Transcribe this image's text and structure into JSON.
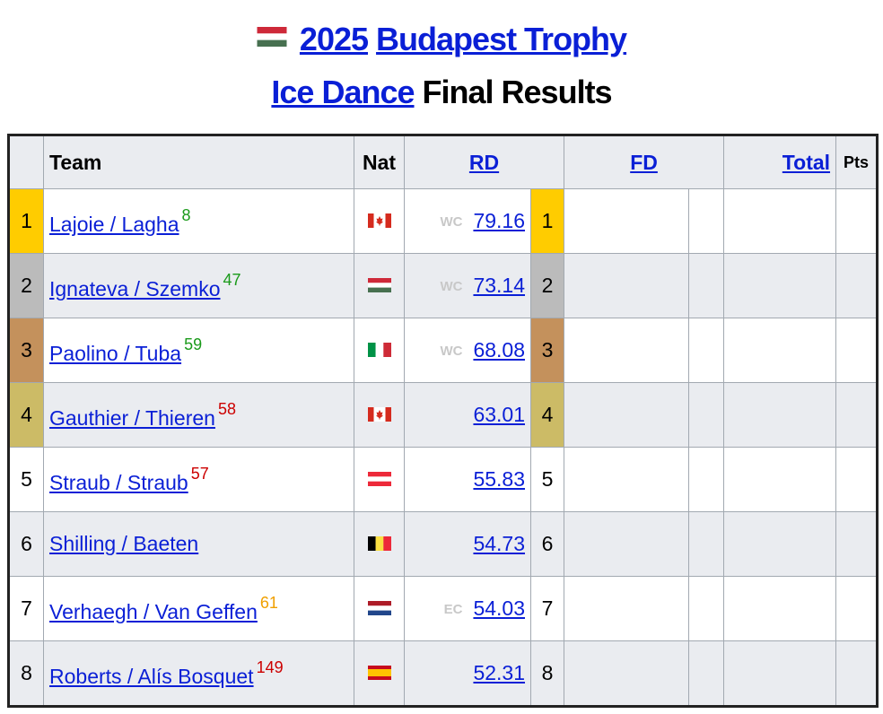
{
  "title": {
    "year": "2025",
    "event": "Budapest Trophy",
    "discipline": "Ice Dance",
    "suffix": "Final Results"
  },
  "table": {
    "columns": [
      "Team",
      "Nat",
      "RD",
      "FD",
      "Total",
      "Pts"
    ],
    "rows": [
      {
        "rank": 1,
        "team": "Lajoie / Lagha",
        "note": 8,
        "tag": "WC",
        "rd": 79.16,
        "rd_rank": 1
      },
      {
        "rank": 2,
        "team": "Ignateva / Szemko",
        "note": 47,
        "tag": "WC",
        "rd": 73.14,
        "rd_rank": 2
      },
      {
        "rank": 3,
        "team": "Paolino / Tuba",
        "note": 59,
        "tag": "WC",
        "rd": 68.08,
        "rd_rank": 3
      },
      {
        "rank": 4,
        "team": "Gauthier / Thieren",
        "note": 58,
        "rd": 63.01,
        "rd_rank": 4
      },
      {
        "rank": 5,
        "team": "Straub / Straub",
        "note": 57,
        "rd": 55.83,
        "rd_rank": 5
      },
      {
        "rank": 6,
        "team": "Shilling / Baeten",
        "rd": 54.73,
        "rd_rank": 6
      },
      {
        "rank": 7,
        "team": "Verhaegh / Van Geffen",
        "note": 61,
        "tag": "EC",
        "rd": 54.03,
        "rd_rank": 7
      },
      {
        "rank": 8,
        "team": "Roberts / Alís Bosquet",
        "note": 149,
        "rd": 52.31,
        "rd_rank": 8
      }
    ]
  }
}
